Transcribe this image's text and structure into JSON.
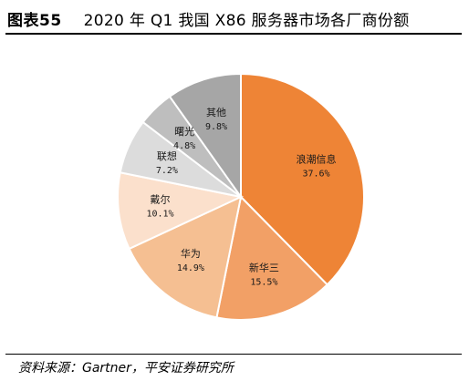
{
  "header": {
    "figure_label": "图表55",
    "title": "2020 年 Q1 我国 X86 服务器市场各厂商份额"
  },
  "chart_data": {
    "type": "pie",
    "title": "2020 年 Q1 我国 X86 服务器市场各厂商份额",
    "categories": [
      "浪潮信息",
      "新华三",
      "华为",
      "戴尔",
      "联想",
      "曙光",
      "其他"
    ],
    "values": [
      37.6,
      15.5,
      14.9,
      10.1,
      7.2,
      4.8,
      9.8
    ],
    "value_labels": [
      "37.6%",
      "15.5%",
      "14.9%",
      "10.1%",
      "7.2%",
      "4.8%",
      "9.8%"
    ],
    "colors": [
      "#EE8436",
      "#F2A066",
      "#F5BF92",
      "#FBE0CC",
      "#DCDCDC",
      "#BEBEBE",
      "#A6A6A6"
    ],
    "start_angle_deg": 0,
    "direction": "clockwise",
    "legend": "none"
  },
  "footer": {
    "source": "资料来源：Gartner，平安证券研究所"
  }
}
